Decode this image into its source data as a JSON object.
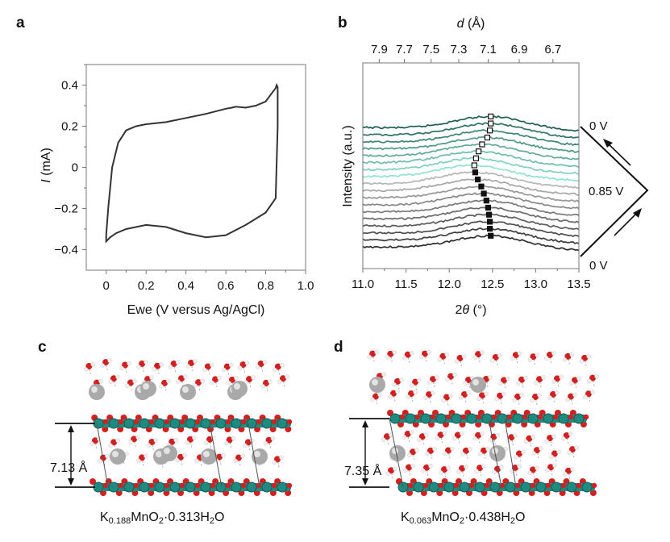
{
  "panels": {
    "a": {
      "letter": "a"
    },
    "b": {
      "letter": "b"
    },
    "c": {
      "letter": "c",
      "spacing": "7.13 Å",
      "formula": {
        "k": "K",
        "k_sub": "0.188",
        "mn": "MnO",
        "o_sub": "2",
        "mid": "·0.313H",
        "h_sub": "2",
        "end": "O"
      }
    },
    "d": {
      "letter": "d",
      "spacing": "7.35 Å",
      "formula": {
        "k": "K",
        "k_sub": "0.063",
        "mn": "MnO",
        "o_sub": "2",
        "mid": "·0.438H",
        "h_sub": "2",
        "end": "O"
      }
    }
  },
  "chart_data": [
    {
      "type": "line",
      "panel": "a",
      "xlabel": "Ewe (V versus Ag/AgCl)",
      "ylabel_italic": "I",
      "ylabel_rest": " (mA)",
      "xlim": [
        -0.1,
        1.0
      ],
      "ylim": [
        -0.5,
        0.5
      ],
      "xticks": [
        "0",
        "0.2",
        "0.4",
        "0.6",
        "0.8",
        "1.0"
      ],
      "xtick_values": [
        0,
        0.2,
        0.4,
        0.6,
        0.8,
        1.0
      ],
      "yticks": [
        "−0.4",
        "−0.2",
        "0",
        "0.2",
        "0.4"
      ],
      "ytick_values": [
        -0.4,
        -0.2,
        0,
        0.2,
        0.4
      ],
      "series": [
        {
          "x": [
            0.0,
            0.01,
            0.03,
            0.06,
            0.1,
            0.15,
            0.2,
            0.3,
            0.4,
            0.5,
            0.6,
            0.63,
            0.65,
            0.7,
            0.75,
            0.8,
            0.83,
            0.85,
            0.855,
            0.86,
            0.86,
            0.85,
            0.8,
            0.7,
            0.6,
            0.5,
            0.4,
            0.3,
            0.2,
            0.1,
            0.05,
            0.02,
            0.0,
            0.0
          ],
          "y": [
            -0.33,
            -0.2,
            0.0,
            0.12,
            0.18,
            0.2,
            0.21,
            0.22,
            0.24,
            0.26,
            0.285,
            0.29,
            0.295,
            0.29,
            0.3,
            0.32,
            0.36,
            0.385,
            0.4,
            0.39,
            0.2,
            -0.15,
            -0.22,
            -0.28,
            -0.33,
            -0.34,
            -0.32,
            -0.29,
            -0.28,
            -0.3,
            -0.32,
            -0.34,
            -0.36,
            -0.33
          ]
        }
      ]
    },
    {
      "type": "line",
      "panel": "b",
      "xlabel_pre": "2",
      "xlabel_italic": "θ",
      "xlabel_post": " (°)",
      "ylabel": "Intensity (a.u.)",
      "top_label_italic": "d",
      "top_label_rest": " (Å)",
      "xlim": [
        11.0,
        13.5
      ],
      "xticks": [
        "11.0",
        "11.5",
        "12.0",
        "12.5",
        "13.0",
        "13.5"
      ],
      "xtick_values": [
        11.0,
        11.5,
        12.0,
        12.5,
        13.0,
        13.5
      ],
      "top_ticks": [
        "7.9",
        "7.7",
        "7.5",
        "7.3",
        "7.1",
        "6.9",
        "6.7"
      ],
      "top_tick_values": [
        11.19,
        11.48,
        11.79,
        12.11,
        12.45,
        12.81,
        13.2
      ],
      "right_labels": [
        "0 V",
        "0.85 V",
        "0 V"
      ],
      "peak_positions_bottom_to_top": [
        12.48,
        12.47,
        12.47,
        12.46,
        12.45,
        12.43,
        12.4,
        12.37,
        12.33,
        12.3,
        12.29,
        12.31,
        12.34,
        12.38,
        12.44,
        12.47,
        12.48,
        12.48
      ],
      "peak_marker_filled": [
        true,
        true,
        true,
        true,
        true,
        true,
        true,
        true,
        true,
        true,
        false,
        false,
        false,
        false,
        false,
        false,
        false,
        false
      ],
      "trace_count": 18,
      "colors": {
        "dark": "#2f2f2f",
        "gray": "#b5b5b5",
        "teal_light": "#8fe3cf",
        "teal_dark": "#1e5f52"
      }
    }
  ],
  "structures": {
    "colors": {
      "octahedra": "#1f8a80",
      "oxygen": "#d22020",
      "potassium": "#a9a9a9",
      "hydrogen": "#efefef"
    }
  }
}
